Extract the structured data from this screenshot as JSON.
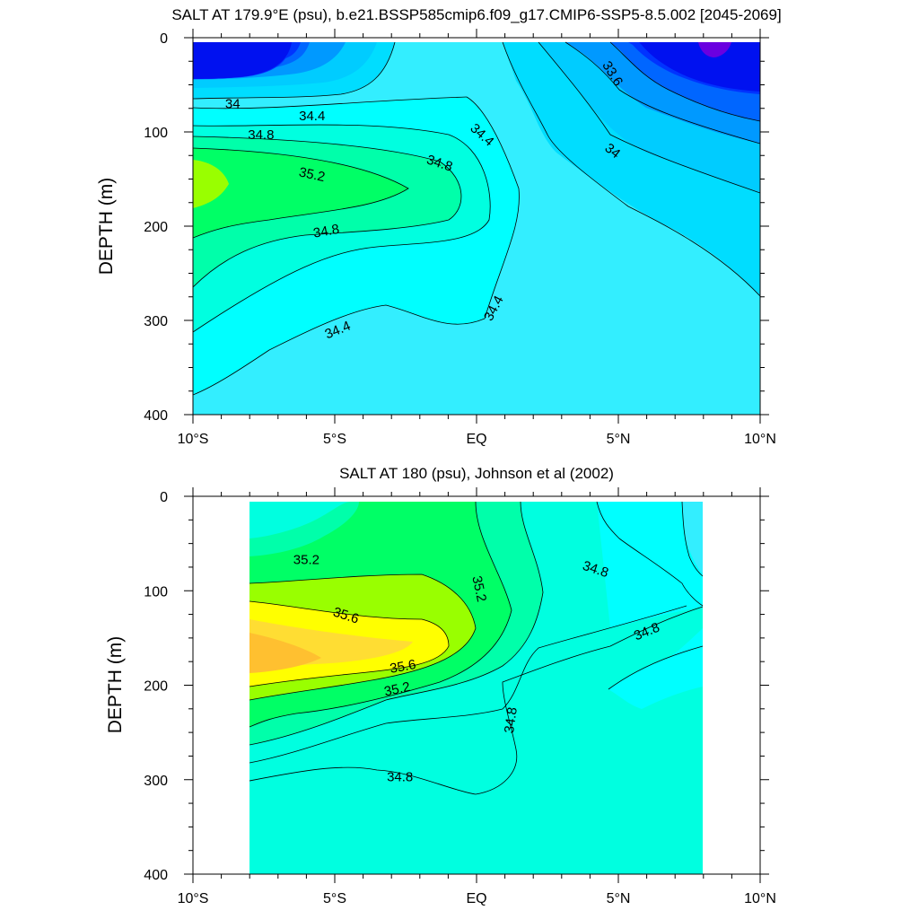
{
  "chart_data": [
    {
      "type": "contour",
      "title": "SALT AT 179.9°E (psu), b.e21.BSSP585cmip6.f09_g17.CMIP6-SSP5-8.5.002 [2045-2069]",
      "xlabel": "",
      "ylabel": "DEPTH (m)",
      "x_ticks": [
        "10°S",
        "5°S",
        "EQ",
        "5°N",
        "10°N"
      ],
      "x_tick_values": [
        -10,
        -5,
        0,
        5,
        10
      ],
      "y_ticks": [
        "0",
        "100",
        "200",
        "300",
        "400"
      ],
      "y_tick_values": [
        0,
        100,
        200,
        300,
        400
      ],
      "xlim": [
        -10,
        10
      ],
      "ylim": [
        400,
        0
      ],
      "data_extent": {
        "x": [
          -10,
          10
        ],
        "y": [
          5,
          400
        ]
      },
      "contour_levels": [
        33.0,
        33.2,
        33.4,
        33.6,
        33.8,
        34.0,
        34.2,
        34.4,
        34.6,
        34.8,
        35.0,
        35.2,
        35.4
      ],
      "contour_labels": [
        {
          "text": "34",
          "x": -8.6,
          "y": 70,
          "angle": 0
        },
        {
          "text": "34.4",
          "x": -5.8,
          "y": 83,
          "angle": 0
        },
        {
          "text": "34.8",
          "x": -7.6,
          "y": 103,
          "angle": 0
        },
        {
          "text": "35.2",
          "x": -5.8,
          "y": 145,
          "angle": 12
        },
        {
          "text": "34.8",
          "x": -1.3,
          "y": 133,
          "angle": 18
        },
        {
          "text": "34.4",
          "x": 0.2,
          "y": 103,
          "angle": 42
        },
        {
          "text": "33.6",
          "x": 4.8,
          "y": 38,
          "angle": 58
        },
        {
          "text": "34",
          "x": 4.8,
          "y": 120,
          "angle": 38
        },
        {
          "text": "34.8",
          "x": -5.3,
          "y": 205,
          "angle": -10
        },
        {
          "text": "34.4",
          "x": 0.6,
          "y": 287,
          "angle": -62
        },
        {
          "text": "34.4",
          "x": -4.9,
          "y": 310,
          "angle": -22
        }
      ],
      "colors": [
        "#1f00f5",
        "#0033ff",
        "#0066ff",
        "#0099ff",
        "#00ccff",
        "#00ddff",
        "#33eeff",
        "#00ffff",
        "#00ffe0",
        "#00ffaa",
        "#00ff66",
        "#99ff00"
      ]
    },
    {
      "type": "contour",
      "title": "SALT AT 180 (psu), Johnson et al (2002)",
      "xlabel": "",
      "ylabel": "DEPTH (m)",
      "x_ticks": [
        "10°S",
        "5°S",
        "EQ",
        "5°N",
        "10°N"
      ],
      "x_tick_values": [
        -10,
        -5,
        0,
        5,
        10
      ],
      "y_ticks": [
        "0",
        "100",
        "200",
        "300",
        "400"
      ],
      "y_tick_values": [
        0,
        100,
        200,
        300,
        400
      ],
      "xlim": [
        -10,
        10
      ],
      "ylim": [
        400,
        0
      ],
      "data_extent": {
        "x": [
          -8,
          8
        ],
        "y": [
          5,
          400
        ]
      },
      "contour_levels": [
        34.4,
        34.6,
        34.8,
        35.0,
        35.2,
        35.4,
        35.6,
        35.8
      ],
      "contour_labels": [
        {
          "text": "35.2",
          "x": -6.0,
          "y": 67,
          "angle": 0
        },
        {
          "text": "35.2",
          "x": 0.1,
          "y": 98,
          "angle": 78
        },
        {
          "text": "34.8",
          "x": 4.2,
          "y": 77,
          "angle": 18
        },
        {
          "text": "35.6",
          "x": -4.6,
          "y": 126,
          "angle": 18
        },
        {
          "text": "34.8",
          "x": 6.0,
          "y": 143,
          "angle": -22
        },
        {
          "text": "35.6",
          "x": -2.6,
          "y": 180,
          "angle": -10
        },
        {
          "text": "35.2",
          "x": -2.8,
          "y": 204,
          "angle": -12
        },
        {
          "text": "34.8",
          "x": 1.2,
          "y": 237,
          "angle": -82
        },
        {
          "text": "34.8",
          "x": -2.7,
          "y": 297,
          "angle": 0
        }
      ],
      "colors": [
        "#33eeff",
        "#00ffff",
        "#00ffe0",
        "#00ffaa",
        "#00ff66",
        "#99ff00",
        "#ffff00",
        "#ffdd33",
        "#ffc030"
      ]
    }
  ]
}
